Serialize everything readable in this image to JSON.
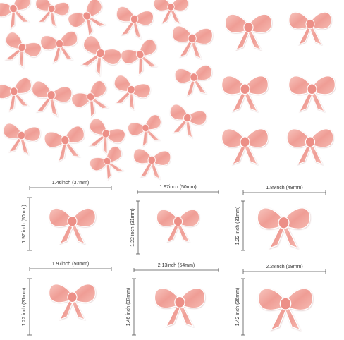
{
  "items": [
    {
      "width": "1.46inch (37mm)",
      "height": "1.97 inch (50mm)"
    },
    {
      "width": "1.97inch (50mm)",
      "height": "1.22 inch (31mm)"
    },
    {
      "width": "1.89inch (48mm)",
      "height": "1.22 inch (31mm)"
    },
    {
      "width": "1.97inch (50mm)",
      "height": "1.22 inch (31mm)"
    },
    {
      "width": "2.13inch (54mm)",
      "height": "1.46 inch (37mm)"
    },
    {
      "width": "2.28inch (58mm)",
      "height": "1.42 inch (36mm)"
    }
  ]
}
